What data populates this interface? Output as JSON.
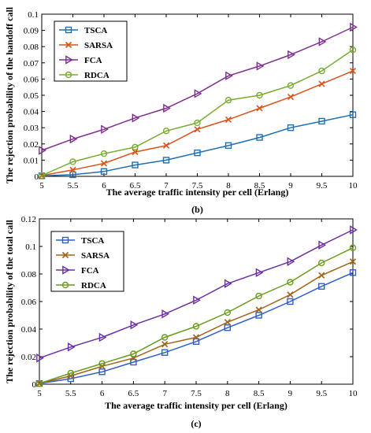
{
  "chart_data": [
    {
      "type": "line",
      "caption": "(b)",
      "xlabel": "The average traffic intensity per cell (Erlang)",
      "ylabel": "The rejection probability of the handoff call",
      "xlim": [
        5,
        10
      ],
      "ylim": [
        0,
        0.1
      ],
      "x": [
        5,
        5.5,
        6,
        6.5,
        7,
        7.5,
        8,
        8.5,
        9,
        9.5,
        10
      ],
      "x_ticks": [
        "5",
        "5.5",
        "6",
        "6.5",
        "7",
        "7.5",
        "8",
        "8.5",
        "9",
        "9.5",
        "10"
      ],
      "y_ticks": [
        0,
        0.01,
        0.02,
        0.03,
        0.04,
        0.05,
        0.06,
        0.07,
        0.08,
        0.09,
        0.1
      ],
      "y_tick_labels": [
        "0",
        "0.01",
        "0.02",
        "0.03",
        "0.04",
        "0.05",
        "0.06",
        "0.07",
        "0.08",
        "0.09",
        "0.1"
      ],
      "legend_position": "top-left",
      "series": [
        {
          "name": "TSCA",
          "marker": "square",
          "color": "#1f6fb5",
          "values": [
            0.0003,
            0.001,
            0.003,
            0.007,
            0.01,
            0.0145,
            0.019,
            0.024,
            0.03,
            0.034,
            0.038
          ]
        },
        {
          "name": "SARSA",
          "marker": "x",
          "color": "#d9541b",
          "values": [
            0.0005,
            0.004,
            0.008,
            0.015,
            0.019,
            0.029,
            0.035,
            0.042,
            0.049,
            0.057,
            0.065
          ]
        },
        {
          "name": "FCA",
          "marker": "triangle-right",
          "color": "#7e2f8e",
          "values": [
            0.016,
            0.023,
            0.029,
            0.036,
            0.042,
            0.051,
            0.062,
            0.068,
            0.075,
            0.083,
            0.092
          ]
        },
        {
          "name": "RDCA",
          "marker": "circle",
          "color": "#77ac30",
          "values": [
            0.0005,
            0.009,
            0.014,
            0.018,
            0.028,
            0.033,
            0.047,
            0.05,
            0.056,
            0.065,
            0.078
          ]
        }
      ]
    },
    {
      "type": "line",
      "caption": "(c)",
      "xlabel": "The average traffic intensity per cell (Erlang)",
      "ylabel": "The rejection probability of the total call",
      "xlim": [
        5,
        10
      ],
      "ylim": [
        0,
        0.12
      ],
      "x": [
        5,
        5.5,
        6,
        6.5,
        7,
        7.5,
        8,
        8.5,
        9,
        9.5,
        10
      ],
      "x_ticks": [
        "5",
        "5.5",
        "6",
        "6.5",
        "7",
        "7.5",
        "8",
        "8.5",
        "9",
        "9.5",
        "10"
      ],
      "y_ticks": [
        0,
        0.02,
        0.04,
        0.06,
        0.08,
        0.1,
        0.12
      ],
      "y_tick_labels": [
        "0",
        "0.02",
        "0.04",
        "0.06",
        "0.08",
        "0.1",
        "0.12"
      ],
      "legend_position": "top-left",
      "series": [
        {
          "name": "TSCA",
          "marker": "square",
          "color": "#2e5fcc",
          "values": [
            0.0005,
            0.004,
            0.009,
            0.016,
            0.023,
            0.031,
            0.041,
            0.05,
            0.06,
            0.071,
            0.081
          ]
        },
        {
          "name": "SARSA",
          "marker": "x",
          "color": "#a0651a",
          "values": [
            0.0005,
            0.006,
            0.013,
            0.019,
            0.029,
            0.034,
            0.045,
            0.054,
            0.065,
            0.079,
            0.089
          ]
        },
        {
          "name": "FCA",
          "marker": "triangle-right",
          "color": "#6a2fa6",
          "values": [
            0.019,
            0.027,
            0.034,
            0.043,
            0.051,
            0.061,
            0.073,
            0.081,
            0.089,
            0.101,
            0.112
          ]
        },
        {
          "name": "RDCA",
          "marker": "circle",
          "color": "#6a9b1f",
          "values": [
            0.0005,
            0.008,
            0.015,
            0.022,
            0.034,
            0.042,
            0.052,
            0.064,
            0.074,
            0.088,
            0.099
          ]
        }
      ]
    }
  ]
}
